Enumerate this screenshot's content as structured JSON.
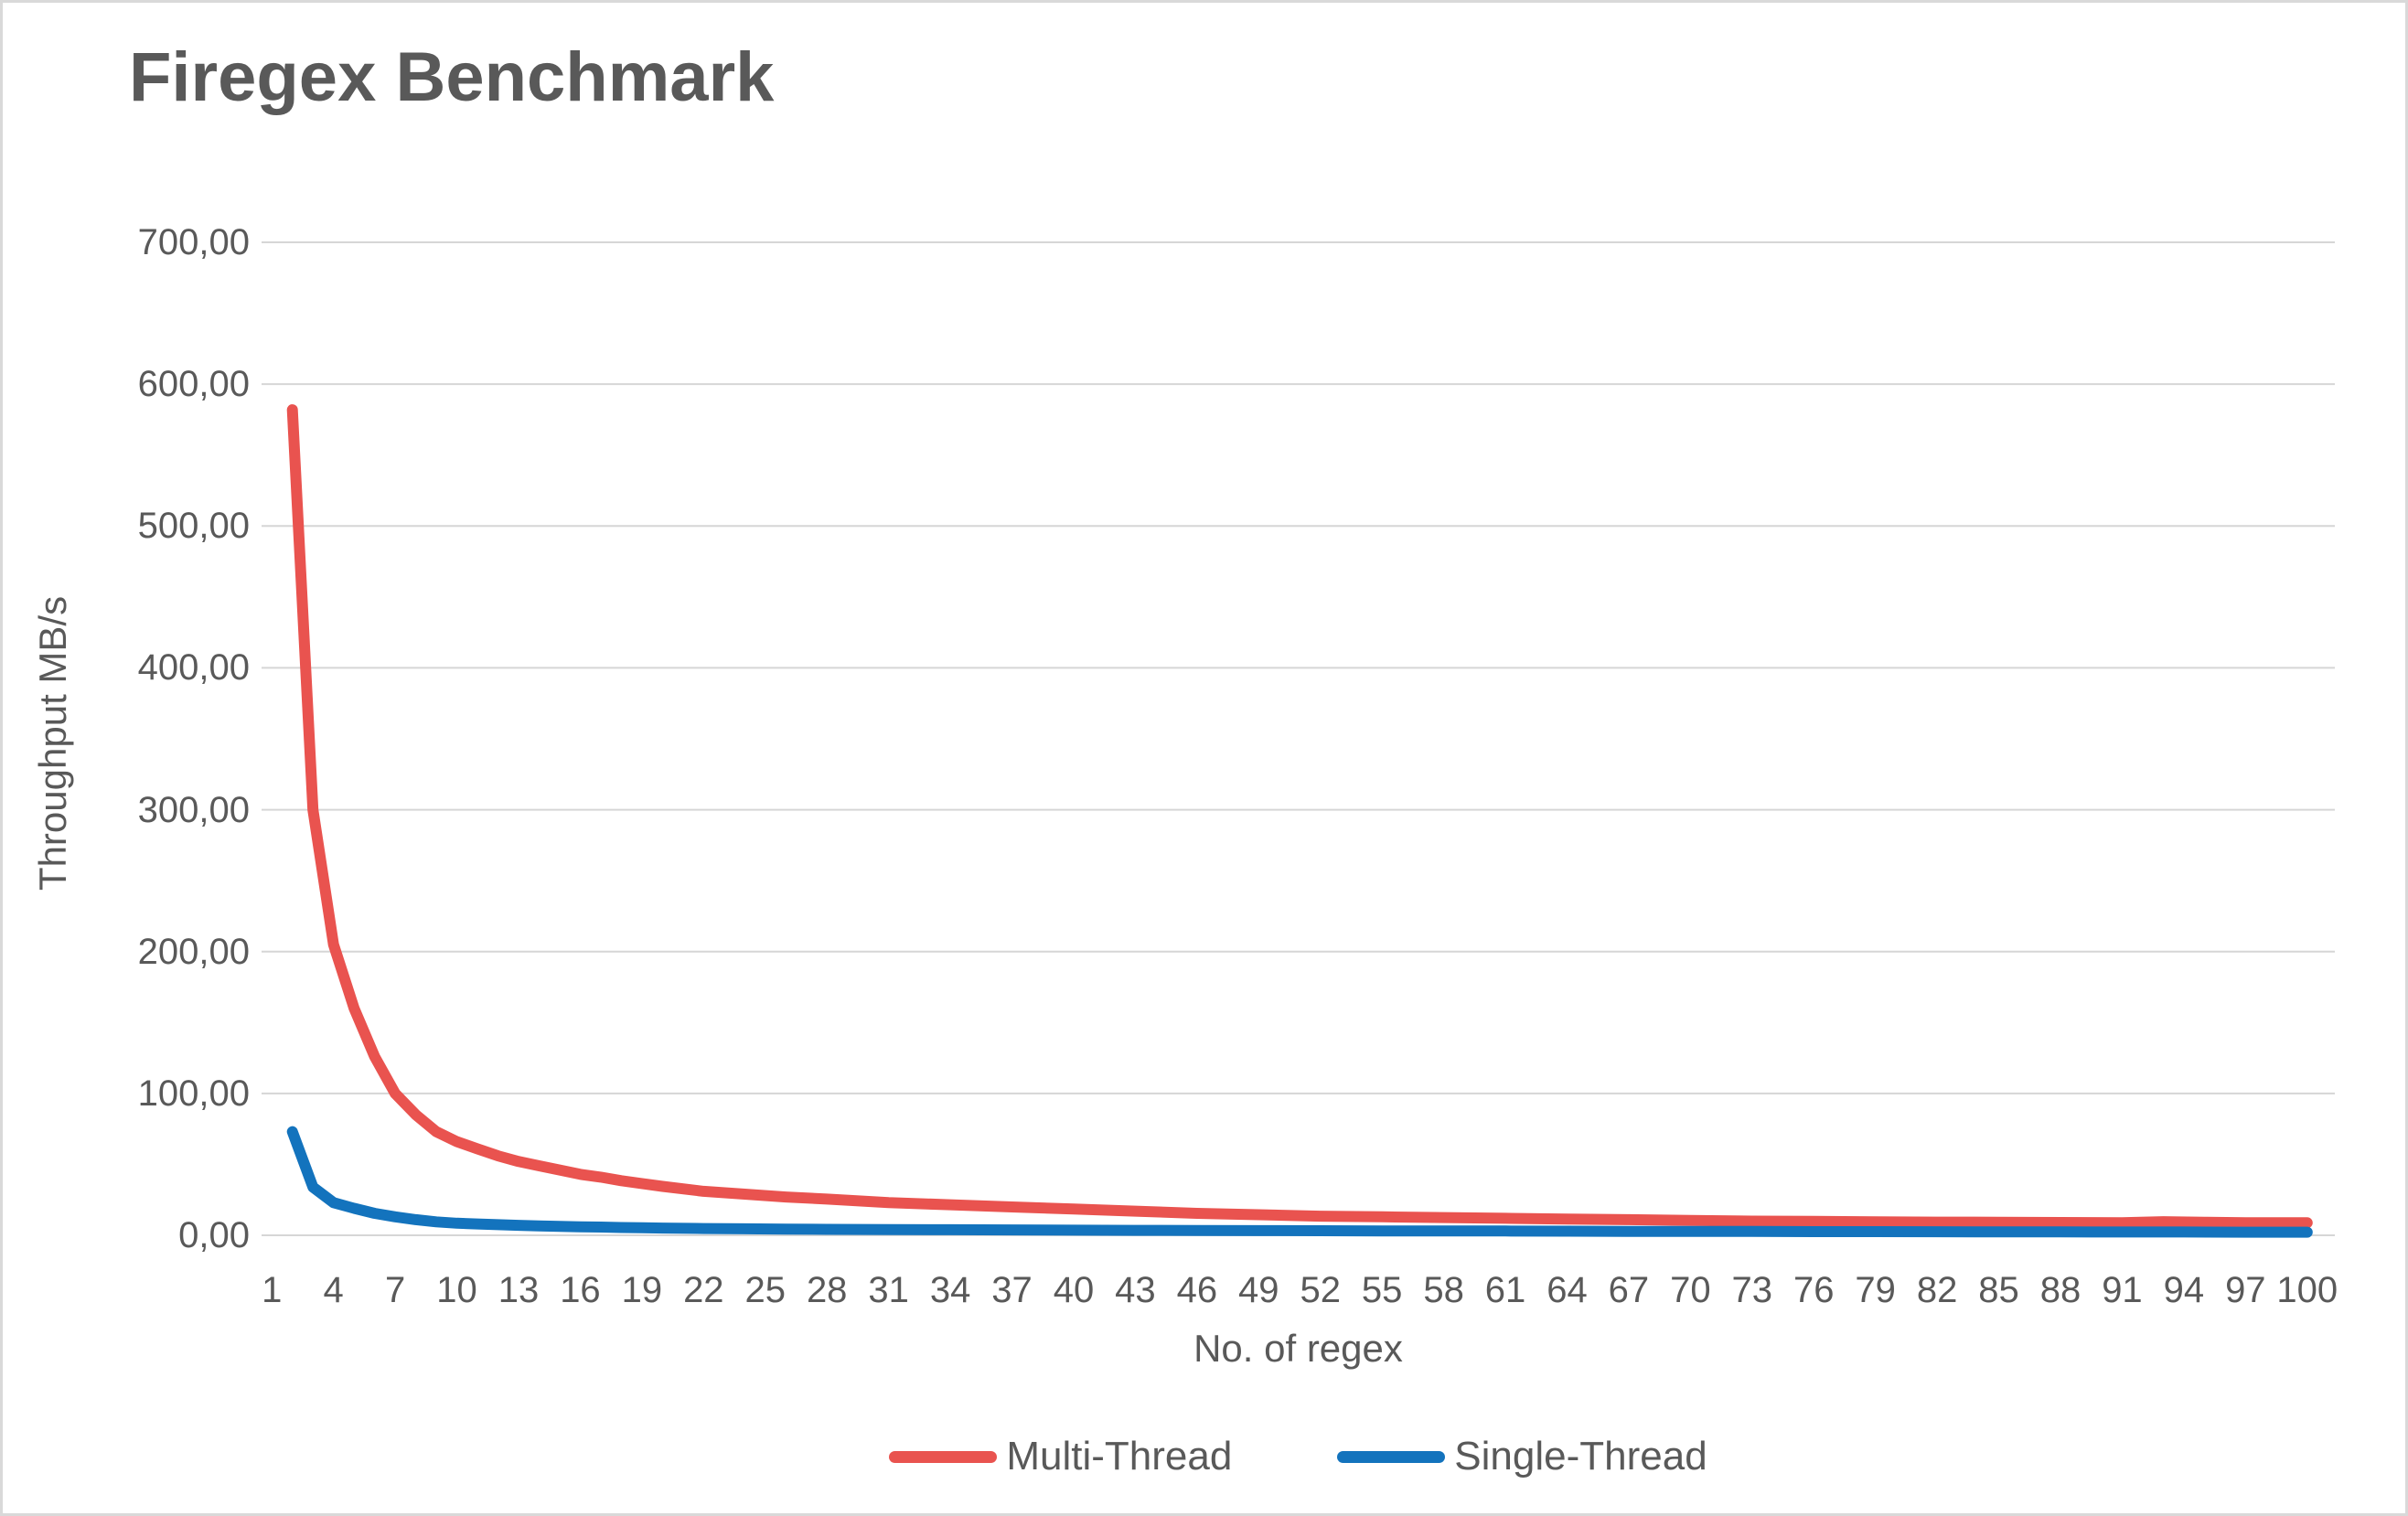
{
  "chart": {
    "title": "Firegex Benchmark",
    "y_axis_title": "Throughput MB/s",
    "x_axis_title": "No. of regex"
  },
  "chart_data": {
    "type": "line",
    "title": "Firegex Benchmark",
    "xlabel": "No. of regex",
    "ylabel": "Throughput MB/s",
    "xlim": [
      1,
      100
    ],
    "ylim": [
      0,
      700
    ],
    "grid": "horizontal",
    "legend_position": "bottom",
    "x_ticks": [
      1,
      4,
      7,
      10,
      13,
      16,
      19,
      22,
      25,
      28,
      31,
      34,
      37,
      40,
      43,
      46,
      49,
      52,
      55,
      58,
      61,
      64,
      67,
      70,
      73,
      76,
      79,
      82,
      85,
      88,
      91,
      94,
      97,
      100
    ],
    "y_ticks": [
      0,
      100,
      200,
      300,
      400,
      500,
      600,
      700
    ],
    "y_tick_labels": [
      "0,00",
      "100,00",
      "200,00",
      "300,00",
      "400,00",
      "500,00",
      "600,00",
      "700,00"
    ],
    "colors": {
      "multi_thread": "#e9534f",
      "single_thread": "#1373bd",
      "gridline": "#d6d6d6",
      "text": "#595959"
    },
    "series": [
      {
        "name": "Multi-Thread",
        "color": "#e9534f",
        "points": [
          [
            2,
            582
          ],
          [
            3,
            300
          ],
          [
            4,
            205
          ],
          [
            5,
            160
          ],
          [
            6,
            126
          ],
          [
            7,
            100
          ],
          [
            8,
            85
          ],
          [
            9,
            73
          ],
          [
            10,
            66
          ],
          [
            11,
            61
          ],
          [
            12,
            56
          ],
          [
            13,
            52
          ],
          [
            14,
            49
          ],
          [
            15,
            46
          ],
          [
            16,
            43
          ],
          [
            17,
            41
          ],
          [
            18,
            38.5
          ],
          [
            19,
            36.5
          ],
          [
            20,
            34.5
          ],
          [
            22,
            31
          ],
          [
            24,
            29
          ],
          [
            26,
            27
          ],
          [
            28,
            25.5
          ],
          [
            31,
            23
          ],
          [
            34,
            21.5
          ],
          [
            37,
            20
          ],
          [
            40,
            18.5
          ],
          [
            43,
            17
          ],
          [
            46,
            15.5
          ],
          [
            49,
            14.5
          ],
          [
            52,
            13.5
          ],
          [
            55,
            13
          ],
          [
            58,
            12.5
          ],
          [
            61,
            12
          ],
          [
            64,
            11.5
          ],
          [
            67,
            11
          ],
          [
            70,
            10.5
          ],
          [
            73,
            10
          ],
          [
            76,
            9.8
          ],
          [
            79,
            9.5
          ],
          [
            82,
            9.3
          ],
          [
            85,
            9.2
          ],
          [
            88,
            9
          ],
          [
            91,
            8.8
          ],
          [
            93,
            9.6
          ],
          [
            95,
            9.2
          ],
          [
            97,
            8.9
          ],
          [
            100,
            8.8
          ]
        ]
      },
      {
        "name": "Single-Thread",
        "color": "#1373bd",
        "points": [
          [
            2,
            73
          ],
          [
            3,
            34
          ],
          [
            4,
            23
          ],
          [
            5,
            19
          ],
          [
            6,
            15.5
          ],
          [
            7,
            13
          ],
          [
            8,
            11
          ],
          [
            9,
            9.5
          ],
          [
            10,
            8.5
          ],
          [
            11,
            8
          ],
          [
            12,
            7.5
          ],
          [
            13,
            7
          ],
          [
            14,
            6.6
          ],
          [
            15,
            6.3
          ],
          [
            16,
            6
          ],
          [
            17,
            5.8
          ],
          [
            18,
            5.5
          ],
          [
            19,
            5.3
          ],
          [
            20,
            5.1
          ],
          [
            22,
            4.8
          ],
          [
            24,
            4.6
          ],
          [
            26,
            4.4
          ],
          [
            28,
            4.2
          ],
          [
            31,
            4
          ],
          [
            34,
            3.9
          ],
          [
            37,
            3.8
          ],
          [
            40,
            3.6
          ],
          [
            43,
            3.5
          ],
          [
            46,
            3.4
          ],
          [
            49,
            3.3
          ],
          [
            52,
            3.2
          ],
          [
            55,
            3.1
          ],
          [
            58,
            3
          ],
          [
            61,
            3
          ],
          [
            64,
            2.9
          ],
          [
            67,
            2.8
          ],
          [
            70,
            2.8
          ],
          [
            73,
            2.7
          ],
          [
            76,
            2.6
          ],
          [
            79,
            2.6
          ],
          [
            82,
            2.5
          ],
          [
            85,
            2.4
          ],
          [
            88,
            2.4
          ],
          [
            91,
            2.3
          ],
          [
            94,
            2.3
          ],
          [
            97,
            2.2
          ],
          [
            100,
            2.2
          ]
        ]
      }
    ]
  }
}
